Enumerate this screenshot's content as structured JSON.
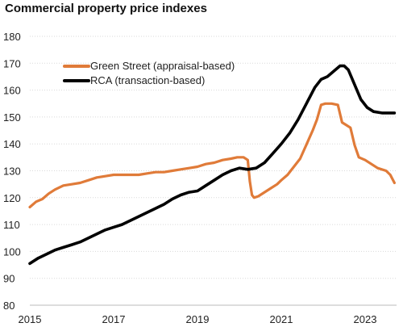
{
  "chart_data": {
    "type": "line",
    "title": "Commercial property price indexes",
    "xlabel": "",
    "ylabel": "",
    "xlim": [
      2015.0,
      2023.75
    ],
    "ylim": [
      80,
      180
    ],
    "yticks": [
      80,
      90,
      100,
      110,
      120,
      130,
      140,
      150,
      160,
      170,
      180
    ],
    "xticks": [
      2015,
      2017,
      2019,
      2021,
      2023
    ],
    "grid": "horizontal",
    "legend_position": "upper-left",
    "colors": {
      "green_street": "#E07B39",
      "rca": "#000000"
    },
    "series": [
      {
        "name": "Green Street (appraisal-based)",
        "color": "#E07B39",
        "x": [
          2015.0,
          2015.15,
          2015.3,
          2015.45,
          2015.6,
          2015.8,
          2016.0,
          2016.2,
          2016.4,
          2016.6,
          2016.8,
          2017.0,
          2017.2,
          2017.4,
          2017.6,
          2017.8,
          2018.0,
          2018.2,
          2018.4,
          2018.6,
          2018.8,
          2019.0,
          2019.2,
          2019.4,
          2019.6,
          2019.8,
          2019.95,
          2020.1,
          2020.2,
          2020.25,
          2020.3,
          2020.35,
          2020.45,
          2020.6,
          2020.75,
          2020.9,
          2021.0,
          2021.15,
          2021.3,
          2021.45,
          2021.55,
          2021.65,
          2021.75,
          2021.85,
          2021.95,
          2022.05,
          2022.2,
          2022.35,
          2022.45,
          2022.55,
          2022.65,
          2022.75,
          2022.85,
          2023.0,
          2023.15,
          2023.3,
          2023.5,
          2023.6,
          2023.7
        ],
        "values": [
          116.5,
          118.5,
          119.5,
          121.5,
          123.0,
          124.5,
          125.0,
          125.5,
          126.5,
          127.5,
          128.0,
          128.5,
          128.5,
          128.5,
          128.5,
          129.0,
          129.5,
          129.5,
          130.0,
          130.5,
          131.0,
          131.5,
          132.5,
          133.0,
          134.0,
          134.5,
          135.0,
          135.0,
          134.0,
          126.0,
          121.0,
          120.0,
          120.5,
          122.0,
          123.5,
          125.0,
          126.5,
          128.5,
          131.5,
          134.5,
          138.0,
          141.5,
          145.0,
          149.0,
          154.5,
          155.0,
          155.0,
          154.5,
          148.0,
          147.0,
          146.0,
          139.5,
          135.0,
          134.0,
          132.5,
          131.0,
          130.0,
          128.5,
          125.5
        ]
      },
      {
        "name": "RCA (transaction-based)",
        "color": "#000000",
        "x": [
          2015.0,
          2015.2,
          2015.4,
          2015.6,
          2015.8,
          2016.0,
          2016.2,
          2016.4,
          2016.6,
          2016.8,
          2017.0,
          2017.2,
          2017.4,
          2017.6,
          2017.8,
          2018.0,
          2018.2,
          2018.4,
          2018.6,
          2018.8,
          2019.0,
          2019.2,
          2019.4,
          2019.6,
          2019.8,
          2020.0,
          2020.2,
          2020.4,
          2020.6,
          2020.8,
          2021.0,
          2021.2,
          2021.4,
          2021.6,
          2021.8,
          2021.95,
          2022.1,
          2022.25,
          2022.4,
          2022.5,
          2022.6,
          2022.75,
          2022.9,
          2023.05,
          2023.2,
          2023.4,
          2023.6,
          2023.7
        ],
        "values": [
          95.5,
          97.5,
          99.0,
          100.5,
          101.5,
          102.5,
          103.5,
          105.0,
          106.5,
          108.0,
          109.0,
          110.0,
          111.5,
          113.0,
          114.5,
          116.0,
          117.5,
          119.5,
          121.0,
          122.0,
          122.5,
          124.5,
          126.5,
          128.5,
          130.0,
          131.0,
          130.5,
          131.0,
          133.0,
          136.5,
          140.0,
          144.0,
          149.0,
          155.0,
          161.0,
          164.0,
          165.0,
          167.0,
          169.0,
          169.0,
          167.5,
          162.0,
          156.5,
          153.5,
          152.0,
          151.5,
          151.5,
          151.5
        ]
      }
    ]
  }
}
